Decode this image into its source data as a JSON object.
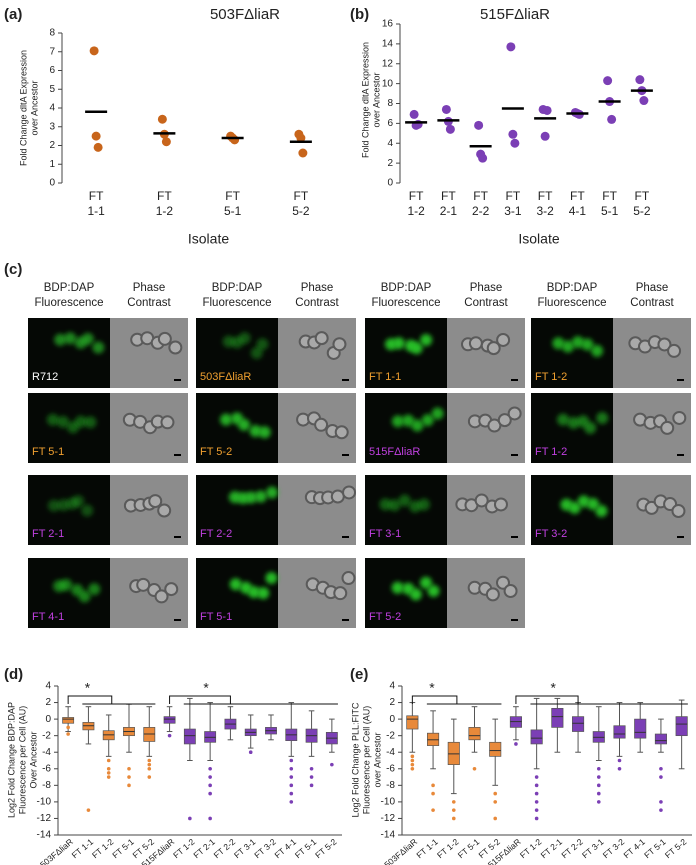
{
  "chart_data": [
    {
      "type": "dot",
      "panel": "(a)",
      "title": "503FΔliaR",
      "ylabel": [
        "Fold Change dltA Expression",
        "over Ancestor"
      ],
      "xlabel": "Isolate",
      "categories": [
        [
          "FT",
          "1-1"
        ],
        [
          "FT",
          "1-2"
        ],
        [
          "FT",
          "5-1"
        ],
        [
          "FT",
          "5-2"
        ]
      ],
      "points": [
        [
          7.05,
          2.5,
          1.9
        ],
        [
          3.4,
          2.6,
          2.2
        ],
        [
          2.5,
          2.4,
          2.3
        ],
        [
          2.6,
          2.4,
          1.6
        ]
      ],
      "means": [
        3.8,
        2.65,
        2.4,
        2.2
      ],
      "color": "#c8651b",
      "ylim": [
        0,
        8
      ],
      "yticks": [
        0,
        1,
        2,
        3,
        4,
        5,
        6,
        7,
        8
      ]
    },
    {
      "type": "dot",
      "panel": "(b)",
      "title": "515FΔliaR",
      "ylabel": [
        "Fold Change dltA Expression",
        "over Ancestor"
      ],
      "xlabel": "Isolate",
      "categories": [
        [
          "FT",
          "1-2"
        ],
        [
          "FT",
          "2-1"
        ],
        [
          "FT",
          "2-2"
        ],
        [
          "FT",
          "3-1"
        ],
        [
          "FT",
          "3-2"
        ],
        [
          "FT",
          "4-1"
        ],
        [
          "FT",
          "5-1"
        ],
        [
          "FT",
          "5-2"
        ]
      ],
      "points": [
        [
          6.9,
          5.8,
          5.9
        ],
        [
          7.4,
          6.2,
          5.4
        ],
        [
          5.8,
          2.9,
          2.5
        ],
        [
          13.7,
          4.9,
          4.0
        ],
        [
          7.4,
          4.7,
          7.3
        ],
        [
          7.1,
          7.0,
          6.9
        ],
        [
          10.3,
          8.2,
          6.4
        ],
        [
          10.4,
          9.3,
          8.3
        ]
      ],
      "means": [
        6.1,
        6.3,
        3.7,
        7.5,
        6.5,
        7.0,
        8.2,
        9.3
      ],
      "color": "#7b3fb5",
      "ylim": [
        0,
        16
      ],
      "yticks": [
        0,
        2,
        4,
        6,
        8,
        10,
        12,
        14,
        16
      ]
    },
    {
      "type": "box",
      "panel": "(d)",
      "ylabel": [
        "Log2 Fold Change BDP:DAP",
        "Fluorescence per Cell (AU)",
        "Over Ancestor"
      ],
      "annotations": [
        "*",
        "*"
      ],
      "categories": [
        "503FΔliaR",
        "FT 1-1",
        "FT 1-2",
        "FT 5-1",
        "FT 5-2",
        "515FΔliaR",
        "FT 1-2",
        "FT 2-1",
        "FT 2-2",
        "FT 3-1",
        "FT 3-2",
        "FT 4-1",
        "FT 5-1",
        "FT 5-2"
      ],
      "colors": [
        "#e8893a",
        "#e8893a",
        "#e8893a",
        "#e8893a",
        "#e8893a",
        "#7b3fb5",
        "#7b3fb5",
        "#7b3fb5",
        "#7b3fb5",
        "#7b3fb5",
        "#7b3fb5",
        "#7b3fb5",
        "#7b3fb5",
        "#7b3fb5"
      ],
      "boxes": [
        [
          -1.5,
          -0.5,
          0,
          0.2,
          1.5
        ],
        [
          -3,
          -1.3,
          -0.8,
          -0.4,
          1.5
        ],
        [
          -4.5,
          -2.5,
          -1.9,
          -1.4,
          0.5
        ],
        [
          -4,
          -2,
          -1.5,
          -1,
          1.8
        ],
        [
          -4.5,
          -2.7,
          -1.8,
          -1,
          1.5
        ],
        [
          -1.5,
          -0.5,
          0,
          0.3,
          1.5
        ],
        [
          -5,
          -3,
          -2,
          -1.2,
          2.5
        ],
        [
          -5,
          -2.8,
          -2.2,
          -1.5,
          2
        ],
        [
          -2.5,
          -1.2,
          -0.6,
          0,
          1.5
        ],
        [
          -3.5,
          -2,
          -1.6,
          -1.2,
          0.5
        ],
        [
          -2.5,
          -1.8,
          -1.4,
          -1,
          0.5
        ],
        [
          -4.5,
          -2.6,
          -1.9,
          -1.2,
          2
        ],
        [
          -4.5,
          -2.8,
          -2,
          -1.2,
          1
        ],
        [
          -4,
          -3,
          -2.3,
          -1.6,
          0
        ]
      ],
      "outliers": [
        [
          -1,
          -1.8
        ],
        [
          -11
        ],
        [
          -5,
          -6,
          -6.5,
          -7
        ],
        [
          -6,
          -7,
          -8
        ],
        [
          -5,
          -5.5,
          -6,
          -7
        ],
        [
          -2
        ],
        [
          -12
        ],
        [
          -6,
          -7,
          -8,
          -9,
          -12
        ],
        [],
        [
          -4
        ],
        [],
        [
          -5,
          -6,
          -7,
          -8,
          -9,
          -10
        ],
        [
          -6,
          -7,
          -8
        ],
        [
          -5.5
        ]
      ],
      "ylim": [
        -14,
        4
      ],
      "yticks": [
        -14,
        -12,
        -10,
        -8,
        -6,
        -4,
        -2,
        0,
        2,
        4
      ]
    },
    {
      "type": "box",
      "panel": "(e)",
      "ylabel": [
        "Log2 Fold Change PLL:FITC",
        "Fluorescence per Cell (AU)",
        "over Ancestor"
      ],
      "annotations": [
        "*",
        "*"
      ],
      "categories": [
        "503FΔliaR",
        "FT 1-1",
        "FT 1-2",
        "FT 5-1",
        "FT 5-2",
        "515FΔliaR",
        "FT 1-2",
        "FT 2-1",
        "FT 2-2",
        "FT 3-1",
        "FT 3-2",
        "FT 4-1",
        "FT 5-1",
        "FT 5-2"
      ],
      "colors": [
        "#e8893a",
        "#e8893a",
        "#e8893a",
        "#e8893a",
        "#e8893a",
        "#7b3fb5",
        "#7b3fb5",
        "#7b3fb5",
        "#7b3fb5",
        "#7b3fb5",
        "#7b3fb5",
        "#7b3fb5",
        "#7b3fb5",
        "#7b3fb5"
      ],
      "boxes": [
        [
          -4,
          -1.2,
          0,
          0.4,
          2
        ],
        [
          -6,
          -3.2,
          -2.5,
          -1.7,
          1
        ],
        [
          -9,
          -5.5,
          -4.2,
          -2.8,
          0
        ],
        [
          -4,
          -2.5,
          -2,
          -1,
          1.5
        ],
        [
          -8,
          -4.5,
          -3.8,
          -2.8,
          0
        ],
        [
          -2.5,
          -1,
          -0.3,
          0.3,
          1.5
        ],
        [
          -6,
          -3,
          -2.3,
          -1.3,
          2.5
        ],
        [
          -4,
          -1,
          0.3,
          1.3,
          2.5
        ],
        [
          -4,
          -1.5,
          -0.5,
          0.3,
          2
        ],
        [
          -5,
          -2.8,
          -2.2,
          -1.5,
          1.5
        ],
        [
          -4.5,
          -2.3,
          -1.8,
          -0.8,
          2
        ],
        [
          -4,
          -2.3,
          -1.6,
          0,
          2
        ],
        [
          -4,
          -3,
          -2.6,
          -1.8,
          0
        ],
        [
          -6,
          -2,
          -0.6,
          0.3,
          2.3
        ]
      ],
      "outliers": [
        [
          -4.5,
          -5,
          -5.5,
          -6
        ],
        [
          -8,
          -9,
          -11
        ],
        [
          -10,
          -11,
          -12
        ],
        [
          -6
        ],
        [
          -9,
          -10,
          -12
        ],
        [
          -3
        ],
        [
          -7,
          -8,
          -9,
          -10,
          -11,
          -12
        ],
        [],
        [],
        [
          -6,
          -7,
          -8,
          -9,
          -10
        ],
        [
          -5,
          -6
        ],
        [],
        [
          -6,
          -7,
          -10,
          -11
        ],
        []
      ],
      "ylim": [
        -14,
        4
      ],
      "yticks": [
        -14,
        -12,
        -10,
        -8,
        -6,
        -4,
        -2,
        0,
        2,
        4
      ]
    }
  ],
  "panel_c": {
    "label": "(c)",
    "headers": [
      [
        "BDP:DAP",
        "Fluorescence"
      ],
      [
        "Phase",
        "Contrast"
      ]
    ],
    "cells": [
      {
        "label": "R712",
        "color": "#ffffff"
      },
      {
        "label": "503FΔliaR",
        "color": "#f0a030"
      },
      {
        "label": "FT 1-1",
        "color": "#f0a030"
      },
      {
        "label": "FT 1-2",
        "color": "#f0a030"
      },
      {
        "label": "FT 5-1",
        "color": "#f0a030"
      },
      {
        "label": "FT 5-2",
        "color": "#f0a030"
      },
      {
        "label": "515FΔliaR",
        "color": "#c040e0"
      },
      {
        "label": "FT 1-2",
        "color": "#c040e0"
      },
      {
        "label": "FT 2-1",
        "color": "#c040e0"
      },
      {
        "label": "FT 2-2",
        "color": "#c040e0"
      },
      {
        "label": "FT 3-1",
        "color": "#c040e0"
      },
      {
        "label": "FT 3-2",
        "color": "#c040e0"
      },
      {
        "label": "FT 4-1",
        "color": "#c040e0"
      },
      {
        "label": "FT 5-1",
        "color": "#c040e0"
      },
      {
        "label": "FT 5-2",
        "color": "#c040e0"
      }
    ]
  }
}
